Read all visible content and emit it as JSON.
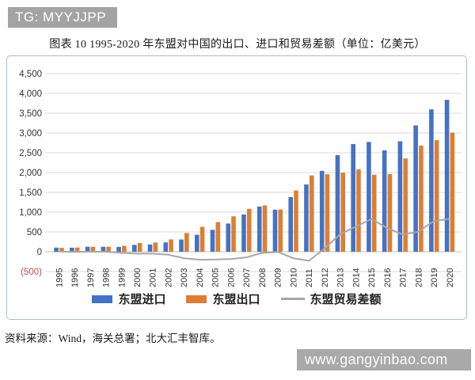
{
  "header_badge": {
    "text": "TG: MYYJJPP"
  },
  "figure": {
    "title": "图表 10 1995-2020 年东盟对中国的出口、进口和贸易差额（单位：亿美元）",
    "source": "资料来源：Wind，海关总署；北大汇丰智库。"
  },
  "watermark": {
    "text": "www.gangyinbao.com"
  },
  "colors": {
    "import_blue": "#4472C4",
    "export_orange": "#DD7E32",
    "balance_gray": "#A6A6A6",
    "gridline": "#D9D9D9",
    "axis_zero_line": "#BFBFBF",
    "axis_text": "#333333",
    "negative_tick_red": "#C0504D",
    "badge_gray": "#A3A3A3",
    "frame_border": "#A9BFC7"
  },
  "chart_data": {
    "type": "bar",
    "subtype": "grouped bars with overlay line",
    "title": "1995-2020 年东盟对中国的出口、进口和贸易差额",
    "unit": "亿美元",
    "xlabel": "",
    "ylabel": "",
    "ylim": [
      -500,
      4500
    ],
    "ytick_step": 500,
    "ytick_labels": [
      "(500)",
      "0",
      "500",
      "1,000",
      "1,500",
      "2,000",
      "2,500",
      "3,000",
      "3,500",
      "4,000",
      "4,500"
    ],
    "grid": true,
    "legend_position": "bottom",
    "categories": [
      1995,
      1996,
      1997,
      1998,
      1999,
      2000,
      2001,
      2002,
      2003,
      2004,
      2005,
      2006,
      2007,
      2008,
      2009,
      2010,
      2011,
      2012,
      2013,
      2014,
      2015,
      2016,
      2017,
      2018,
      2019,
      2020
    ],
    "series": [
      {
        "name": "东盟进口",
        "type": "bar",
        "color": "#4472C4",
        "values": [
          104,
          103,
          127,
          126,
          122,
          173,
          184,
          236,
          309,
          429,
          554,
          713,
          942,
          1141,
          1063,
          1382,
          1701,
          2043,
          2440,
          2720,
          2774,
          2560,
          2791,
          3192,
          3598,
          3837
        ]
      },
      {
        "name": "东盟出口",
        "type": "bar",
        "color": "#DD7E32",
        "values": [
          99,
          107,
          124,
          127,
          149,
          221,
          232,
          312,
          473,
          630,
          750,
          895,
          1084,
          1170,
          1067,
          1546,
          1928,
          1958,
          1996,
          2083,
          1946,
          1962,
          2357,
          2683,
          2819,
          3009
        ]
      },
      {
        "name": "东盟贸易差额",
        "type": "line",
        "color": "#A6A6A6",
        "values": [
          5,
          -4,
          3,
          -1,
          -27,
          -48,
          -48,
          -76,
          -164,
          -201,
          -196,
          -182,
          -142,
          -29,
          -4,
          -164,
          -227,
          85,
          444,
          637,
          828,
          598,
          434,
          509,
          779,
          828
        ]
      }
    ]
  }
}
